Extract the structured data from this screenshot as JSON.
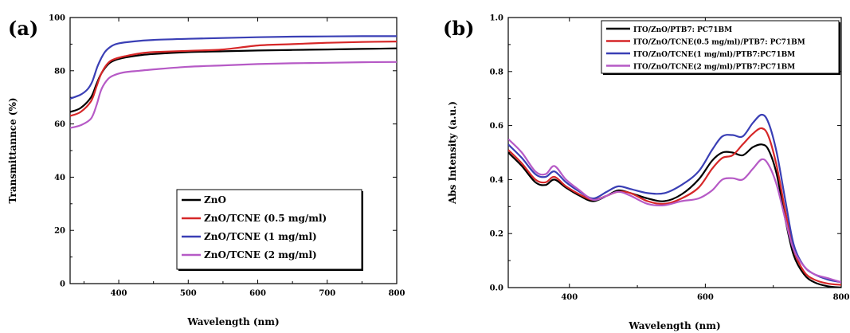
{
  "chart_data": [
    {
      "type": "line",
      "panel_label": "(a)",
      "xlabel": "Wavelength (nm)",
      "ylabel": "Transmittannce (%)",
      "xlim": [
        330,
        800
      ],
      "ylim": [
        0,
        100
      ],
      "xticks": [
        400,
        500,
        600,
        700,
        800
      ],
      "yticks": [
        0,
        20,
        40,
        60,
        80,
        100
      ],
      "legend_position": "bottom-right",
      "series": [
        {
          "name": "ZnO",
          "color": "#000000",
          "x": [
            330,
            345,
            360,
            368,
            375,
            385,
            395,
            410,
            430,
            450,
            500,
            550,
            600,
            650,
            700,
            750,
            800
          ],
          "y": [
            64.5,
            66,
            70,
            75,
            79,
            82.5,
            84,
            85,
            85.8,
            86.3,
            87,
            87.3,
            87.6,
            87.8,
            88,
            88.2,
            88.4
          ]
        },
        {
          "name": "ZnO/TCNE (0.5 mg/ml)",
          "color": "#d62728",
          "x": [
            330,
            345,
            360,
            368,
            375,
            385,
            395,
            410,
            430,
            450,
            500,
            550,
            600,
            650,
            700,
            750,
            800
          ],
          "y": [
            63,
            64.5,
            68.5,
            74,
            79,
            83,
            84.5,
            85.5,
            86.5,
            87,
            87.5,
            88,
            89.5,
            90,
            90.5,
            90.8,
            91
          ]
        },
        {
          "name": "ZnO/TCNE (1 mg/ml)",
          "color": "#3a3fb5",
          "x": [
            330,
            345,
            355,
            362,
            370,
            380,
            390,
            400,
            420,
            450,
            500,
            550,
            600,
            650,
            700,
            750,
            800
          ],
          "y": [
            69.5,
            71,
            73,
            76,
            82,
            87,
            89.3,
            90.3,
            91,
            91.6,
            92,
            92.3,
            92.6,
            92.8,
            92.9,
            93,
            93
          ]
        },
        {
          "name": "ZnO/TCNE (2 mg/ml)",
          "color": "#b65ac6",
          "x": [
            330,
            345,
            360,
            368,
            375,
            385,
            395,
            410,
            430,
            450,
            500,
            550,
            600,
            650,
            700,
            750,
            800
          ],
          "y": [
            58.5,
            59.5,
            62,
            67,
            73,
            77,
            78.5,
            79.5,
            80,
            80.5,
            81.5,
            82,
            82.5,
            82.8,
            83,
            83.2,
            83.3
          ]
        }
      ]
    },
    {
      "type": "line",
      "panel_label": "(b)",
      "xlabel": "Wavelength (nm)",
      "ylabel": "Abs Intensity (a.u.)",
      "xlim": [
        310,
        800
      ],
      "ylim": [
        0,
        1.0
      ],
      "xticks": [
        400,
        600,
        800
      ],
      "yticks": [
        0.0,
        0.2,
        0.4,
        0.6,
        0.8,
        1.0
      ],
      "legend_position": "top-right",
      "series": [
        {
          "name": "ITO/ZnO/PTB7: PC71BM",
          "color": "#000000",
          "x": [
            310,
            330,
            350,
            365,
            378,
            395,
            415,
            435,
            455,
            472,
            490,
            515,
            540,
            565,
            590,
            610,
            625,
            640,
            655,
            670,
            683,
            693,
            705,
            718,
            730,
            745,
            760,
            780,
            800
          ],
          "y": [
            0.5,
            0.45,
            0.39,
            0.38,
            0.4,
            0.37,
            0.34,
            0.32,
            0.34,
            0.36,
            0.35,
            0.33,
            0.32,
            0.345,
            0.4,
            0.47,
            0.5,
            0.5,
            0.49,
            0.52,
            0.53,
            0.51,
            0.42,
            0.25,
            0.12,
            0.05,
            0.02,
            0.005,
            0.0
          ]
        },
        {
          "name": "ITO/ZnO/TCNE(0.5 mg/ml)/PTB7: PC71BM",
          "color": "#d62728",
          "x": [
            310,
            330,
            350,
            365,
            378,
            395,
            415,
            435,
            455,
            472,
            490,
            515,
            540,
            565,
            590,
            610,
            625,
            640,
            655,
            670,
            683,
            693,
            705,
            718,
            730,
            745,
            760,
            780,
            800
          ],
          "y": [
            0.51,
            0.46,
            0.4,
            0.39,
            0.41,
            0.375,
            0.345,
            0.325,
            0.34,
            0.355,
            0.35,
            0.32,
            0.31,
            0.33,
            0.37,
            0.44,
            0.48,
            0.49,
            0.53,
            0.57,
            0.59,
            0.56,
            0.45,
            0.28,
            0.14,
            0.06,
            0.03,
            0.015,
            0.01
          ]
        },
        {
          "name": "ITO/ZnO/TCNE(1 mg/ml)/PTB7:PC71BM",
          "color": "#3a3fb5",
          "x": [
            310,
            330,
            350,
            365,
            378,
            395,
            415,
            435,
            455,
            472,
            490,
            515,
            540,
            565,
            590,
            610,
            625,
            640,
            655,
            670,
            683,
            693,
            705,
            718,
            730,
            745,
            760,
            780,
            800
          ],
          "y": [
            0.53,
            0.48,
            0.42,
            0.41,
            0.43,
            0.39,
            0.355,
            0.33,
            0.355,
            0.375,
            0.365,
            0.35,
            0.35,
            0.38,
            0.43,
            0.51,
            0.56,
            0.565,
            0.56,
            0.61,
            0.64,
            0.61,
            0.5,
            0.32,
            0.16,
            0.08,
            0.05,
            0.03,
            0.02
          ]
        },
        {
          "name": "ITO/ZnO/TCNE(2 mg/ml)/PTB7:PC71BM",
          "color": "#b65ac6",
          "x": [
            310,
            330,
            350,
            365,
            378,
            395,
            415,
            435,
            455,
            472,
            490,
            515,
            540,
            565,
            590,
            610,
            625,
            640,
            655,
            670,
            683,
            693,
            705,
            718,
            730,
            745,
            760,
            780,
            800
          ],
          "y": [
            0.55,
            0.5,
            0.43,
            0.42,
            0.45,
            0.4,
            0.36,
            0.325,
            0.34,
            0.355,
            0.34,
            0.31,
            0.305,
            0.32,
            0.33,
            0.36,
            0.4,
            0.405,
            0.4,
            0.44,
            0.475,
            0.455,
            0.38,
            0.25,
            0.14,
            0.08,
            0.05,
            0.035,
            0.02
          ]
        }
      ]
    }
  ]
}
